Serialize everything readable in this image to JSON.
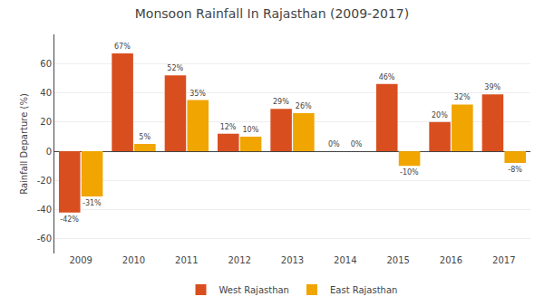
{
  "chart_data": {
    "type": "bar",
    "title": "Monsoon Rainfall In Rajasthan (2009-2017)",
    "ylabel": "Rainfall Departure (%)",
    "categories": [
      "2009",
      "2010",
      "2011",
      "2012",
      "2013",
      "2014",
      "2015",
      "2016",
      "2017"
    ],
    "series": [
      {
        "name": "West Rajasthan",
        "color": "#D94E1F",
        "values": [
          -42,
          67,
          52,
          12,
          29,
          0,
          46,
          20,
          39
        ],
        "value_labels": [
          "-42%",
          "67%",
          "52%",
          "12%",
          "29%",
          "0%",
          "46%",
          "20%",
          "39%"
        ]
      },
      {
        "name": "East Rajasthan",
        "color": "#F0A500",
        "values": [
          -31,
          5,
          35,
          10,
          26,
          0,
          -10,
          32,
          -8
        ],
        "value_labels": [
          "-31%",
          "5%",
          "35%",
          "10%",
          "26%",
          "0%",
          "-10%",
          "32%",
          "-8%"
        ]
      }
    ],
    "ylim": [
      -70,
      80
    ],
    "yticks": [
      -60,
      -40,
      -20,
      0,
      20,
      40,
      60
    ],
    "grid": true,
    "data_labels": true,
    "legend": "bottom"
  }
}
